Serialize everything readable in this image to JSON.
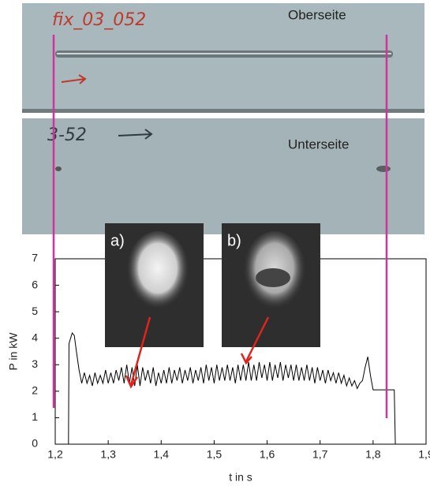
{
  "photos": {
    "top": {
      "label": "fix_03_052",
      "side": "Oberseite"
    },
    "bottom": {
      "label": "3-52",
      "side": "Unterseite"
    },
    "insets": [
      "a)",
      "b)"
    ]
  },
  "chart_data": {
    "type": "line",
    "x_label": "t in s",
    "y_label": "P in kW",
    "xlim": [
      1.2,
      1.9
    ],
    "ylim": [
      0,
      7
    ],
    "xticks": [
      {
        "value": 1.2,
        "label": "1,2"
      },
      {
        "value": 1.3,
        "label": "1,3"
      },
      {
        "value": 1.4,
        "label": "1,4"
      },
      {
        "value": 1.5,
        "label": "1,5"
      },
      {
        "value": 1.6,
        "label": "1,6"
      },
      {
        "value": 1.7,
        "label": "1,7"
      },
      {
        "value": 1.8,
        "label": "1,8"
      },
      {
        "value": 1.9,
        "label": "1,9"
      }
    ],
    "yticks": [
      0,
      1,
      2,
      3,
      4,
      5,
      6,
      7
    ],
    "series": [
      {
        "color": "#000000",
        "x": [
          1.225,
          1.226,
          1.232,
          1.236,
          1.24,
          1.245,
          1.25,
          1.255,
          1.26,
          1.265,
          1.27,
          1.275,
          1.28,
          1.285,
          1.29,
          1.295,
          1.3,
          1.305,
          1.31,
          1.315,
          1.32,
          1.325,
          1.33,
          1.335,
          1.34,
          1.345,
          1.35,
          1.355,
          1.36,
          1.365,
          1.37,
          1.375,
          1.38,
          1.385,
          1.39,
          1.395,
          1.4,
          1.405,
          1.41,
          1.415,
          1.42,
          1.425,
          1.43,
          1.435,
          1.44,
          1.445,
          1.45,
          1.455,
          1.46,
          1.465,
          1.47,
          1.475,
          1.48,
          1.485,
          1.49,
          1.495,
          1.5,
          1.505,
          1.51,
          1.515,
          1.52,
          1.525,
          1.53,
          1.535,
          1.54,
          1.545,
          1.55,
          1.555,
          1.56,
          1.565,
          1.57,
          1.575,
          1.58,
          1.585,
          1.59,
          1.595,
          1.6,
          1.605,
          1.61,
          1.615,
          1.62,
          1.625,
          1.63,
          1.635,
          1.64,
          1.645,
          1.65,
          1.655,
          1.66,
          1.665,
          1.67,
          1.675,
          1.68,
          1.685,
          1.69,
          1.695,
          1.7,
          1.705,
          1.71,
          1.715,
          1.72,
          1.725,
          1.73,
          1.735,
          1.74,
          1.745,
          1.75,
          1.755,
          1.76,
          1.765,
          1.77,
          1.775,
          1.78,
          1.785,
          1.79,
          1.795,
          1.8,
          1.84,
          1.842
        ],
        "values": [
          0,
          3.8,
          4.2,
          4.1,
          3.5,
          2.8,
          2.3,
          2.7,
          2.3,
          2.6,
          2.2,
          2.7,
          2.3,
          2.6,
          2.3,
          2.8,
          2.3,
          2.7,
          2.3,
          2.8,
          2.4,
          2.9,
          2.3,
          3.0,
          2.3,
          2.9,
          2.2,
          3.0,
          2.2,
          2.9,
          2.4,
          2.8,
          2.3,
          2.9,
          2.2,
          2.7,
          2.3,
          2.8,
          2.3,
          2.9,
          2.3,
          2.8,
          2.4,
          2.9,
          2.3,
          2.8,
          2.4,
          2.9,
          2.3,
          2.8,
          2.4,
          2.9,
          2.3,
          3.0,
          2.4,
          2.9,
          2.3,
          3.0,
          2.4,
          2.9,
          2.4,
          3.0,
          2.4,
          2.9,
          2.3,
          3.0,
          2.4,
          3.0,
          2.4,
          3.1,
          2.4,
          3.0,
          2.4,
          3.1,
          2.5,
          3.0,
          2.4,
          3.1,
          2.4,
          3.0,
          2.5,
          3.1,
          2.4,
          3.0,
          2.5,
          3.0,
          2.4,
          3.0,
          2.4,
          2.9,
          2.4,
          3.0,
          2.4,
          2.9,
          2.3,
          2.9,
          2.4,
          2.8,
          2.3,
          2.8,
          2.4,
          2.7,
          2.3,
          2.7,
          2.3,
          2.6,
          2.2,
          2.5,
          2.2,
          2.4,
          2.1,
          2.3,
          2.4,
          2.9,
          3.3,
          2.6,
          2.05,
          2.05,
          0
        ]
      }
    ]
  }
}
